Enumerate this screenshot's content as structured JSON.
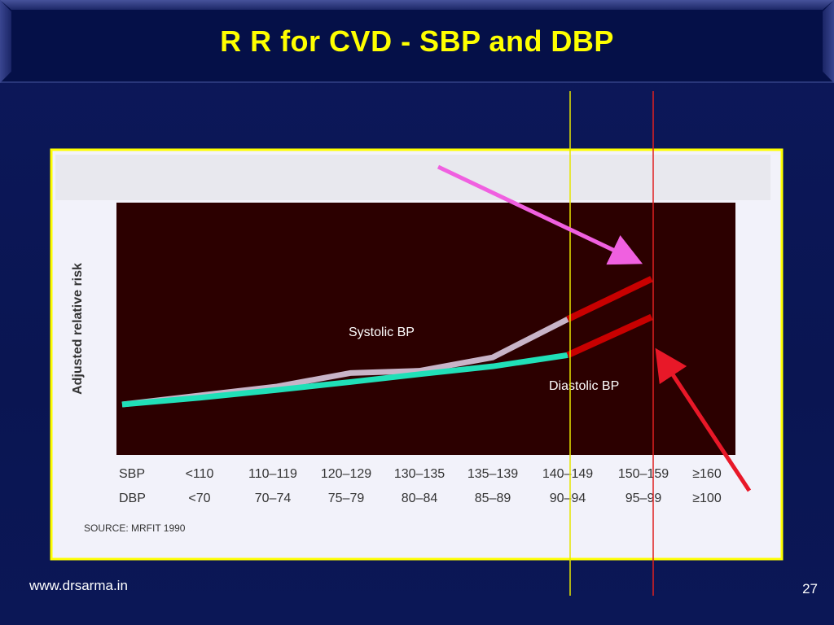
{
  "slide": {
    "title": "R R for CVD - SBP and DBP",
    "footer_url": "www.drsarma.in",
    "page_number": "27"
  },
  "colors": {
    "background": "#0b1655",
    "title_bar": "#051048",
    "title_text": "#ffff00",
    "frame_border": "#ffff00",
    "plot_background": "#2c0000",
    "systolic_line": "#c8b4c8",
    "diastolic_line": "#20e0b8",
    "extension_line": "#c80000",
    "vertical_line_yellow": "#e6e600",
    "vertical_line_red": "#e02020",
    "arrow_magenta": "#f060e0",
    "arrow_red": "#e81828"
  },
  "chart_data": {
    "type": "line",
    "ylabel": "Adjusted relative risk",
    "xlabel": "",
    "row_labels": [
      "SBP",
      "DBP"
    ],
    "categories_sbp": [
      "<110",
      "110–119",
      "120–129",
      "130–135",
      "135–139",
      "140–149",
      "150–159",
      "≥160"
    ],
    "categories_dbp": [
      "<70",
      "70–74",
      "75–79",
      "80–84",
      "85–89",
      "90–94",
      "95–99",
      "≥100"
    ],
    "ylim": [
      0,
      10
    ],
    "grid": false,
    "series": [
      {
        "name": "Systolic BP",
        "values": [
          1.0,
          1.4,
          1.8,
          2.4,
          2.5,
          3.1,
          4.8,
          6.6
        ]
      },
      {
        "name": "Diastolic BP",
        "values": [
          1.0,
          1.3,
          1.65,
          2.0,
          2.35,
          2.7,
          3.2,
          4.9
        ]
      }
    ],
    "extension_from_category": 6,
    "source": "SOURCE: MRFIT 1990",
    "vertical_markers": [
      "140–149 / 90–94",
      "150–159 / 95–99"
    ]
  }
}
